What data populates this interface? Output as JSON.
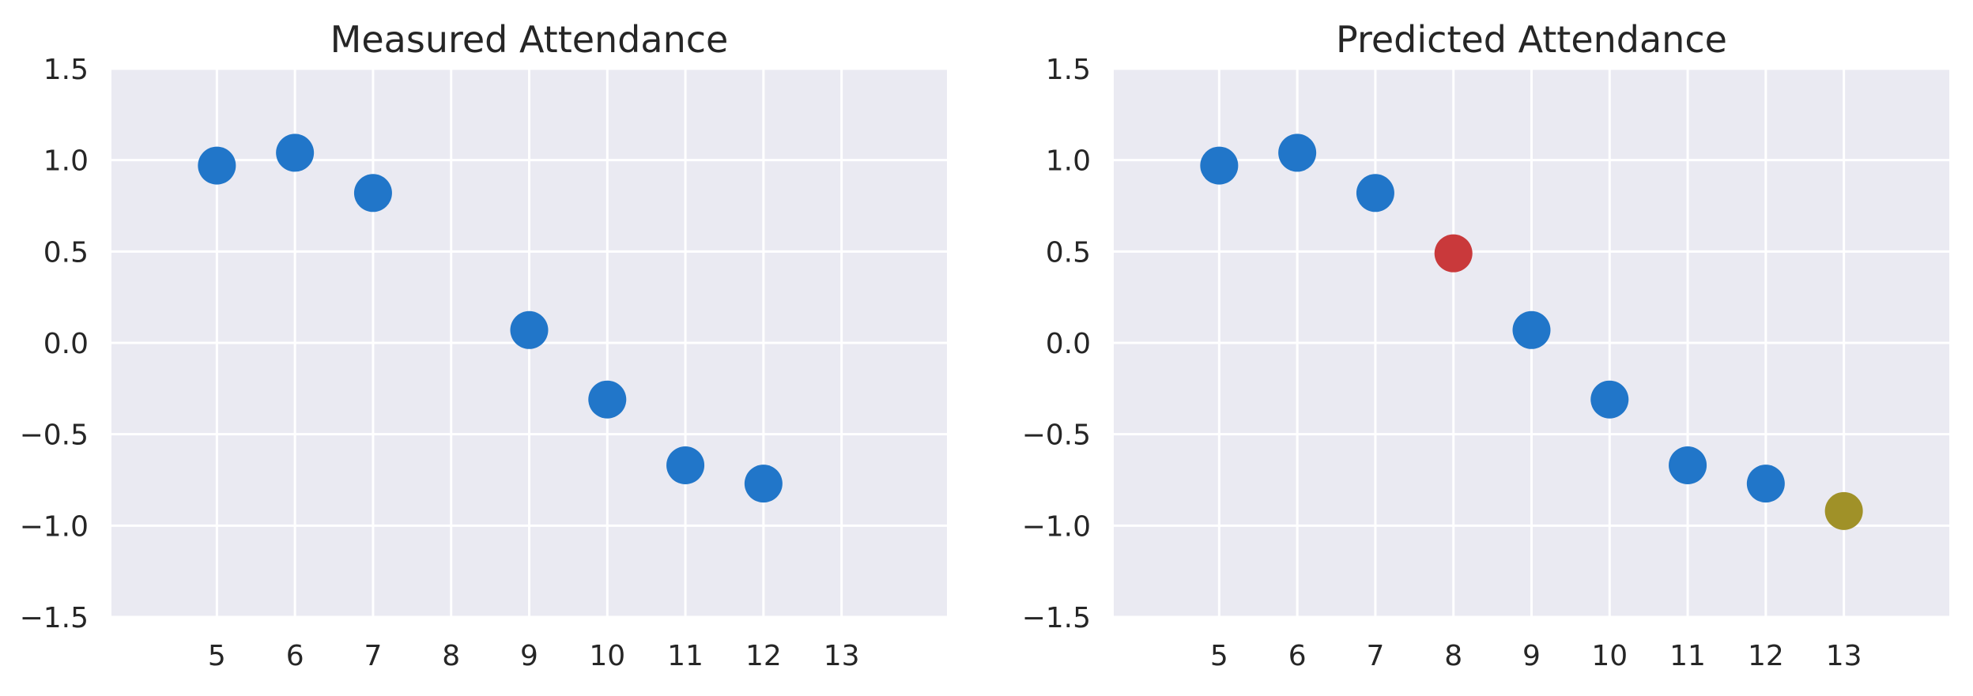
{
  "chart_data": [
    {
      "type": "scatter",
      "title": "Measured Attendance",
      "xlabel": "",
      "ylabel": "",
      "xlim": [
        3.65,
        14.35
      ],
      "ylim": [
        -1.5,
        1.5
      ],
      "xticks": [
        5,
        6,
        7,
        8,
        9,
        10,
        11,
        12,
        13
      ],
      "xtick_labels": [
        "5",
        "6",
        "7",
        "8",
        "9",
        "10",
        "11",
        "12",
        "13"
      ],
      "yticks": [
        1.5,
        1.0,
        0.5,
        0.0,
        -0.5,
        -1.0,
        -1.5
      ],
      "ytick_labels": [
        "1.5",
        "1.0",
        "0.5",
        "0.0",
        "−0.5",
        "−1.0",
        "−1.5"
      ],
      "grid": true,
      "points": [
        {
          "x": 5,
          "y": 0.97,
          "color": "#2176c9"
        },
        {
          "x": 6,
          "y": 1.04,
          "color": "#2176c9"
        },
        {
          "x": 7,
          "y": 0.82,
          "color": "#2176c9"
        },
        {
          "x": 9,
          "y": 0.07,
          "color": "#2176c9"
        },
        {
          "x": 10,
          "y": -0.31,
          "color": "#2176c9"
        },
        {
          "x": 11,
          "y": -0.67,
          "color": "#2176c9"
        },
        {
          "x": 12,
          "y": -0.77,
          "color": "#2176c9"
        }
      ]
    },
    {
      "type": "scatter",
      "title": "Predicted Attendance",
      "xlabel": "",
      "ylabel": "",
      "xlim": [
        3.65,
        14.35
      ],
      "ylim": [
        -1.5,
        1.5
      ],
      "xticks": [
        5,
        6,
        7,
        8,
        9,
        10,
        11,
        12,
        13
      ],
      "xtick_labels": [
        "5",
        "6",
        "7",
        "8",
        "9",
        "10",
        "11",
        "12",
        "13"
      ],
      "yticks": [
        1.5,
        1.0,
        0.5,
        0.0,
        -0.5,
        -1.0,
        -1.5
      ],
      "ytick_labels": [
        "1.5",
        "1.0",
        "0.5",
        "0.0",
        "−0.5",
        "−1.0",
        "−1.5"
      ],
      "grid": true,
      "points": [
        {
          "x": 5,
          "y": 0.97,
          "color": "#2176c9"
        },
        {
          "x": 6,
          "y": 1.04,
          "color": "#2176c9"
        },
        {
          "x": 7,
          "y": 0.82,
          "color": "#2176c9"
        },
        {
          "x": 8,
          "y": 0.49,
          "color": "#c9393b"
        },
        {
          "x": 9,
          "y": 0.07,
          "color": "#2176c9"
        },
        {
          "x": 10,
          "y": -0.31,
          "color": "#2176c9"
        },
        {
          "x": 11,
          "y": -0.67,
          "color": "#2176c9"
        },
        {
          "x": 12,
          "y": -0.77,
          "color": "#2176c9"
        },
        {
          "x": 13,
          "y": -0.92,
          "color": "#a09128"
        }
      ]
    }
  ]
}
